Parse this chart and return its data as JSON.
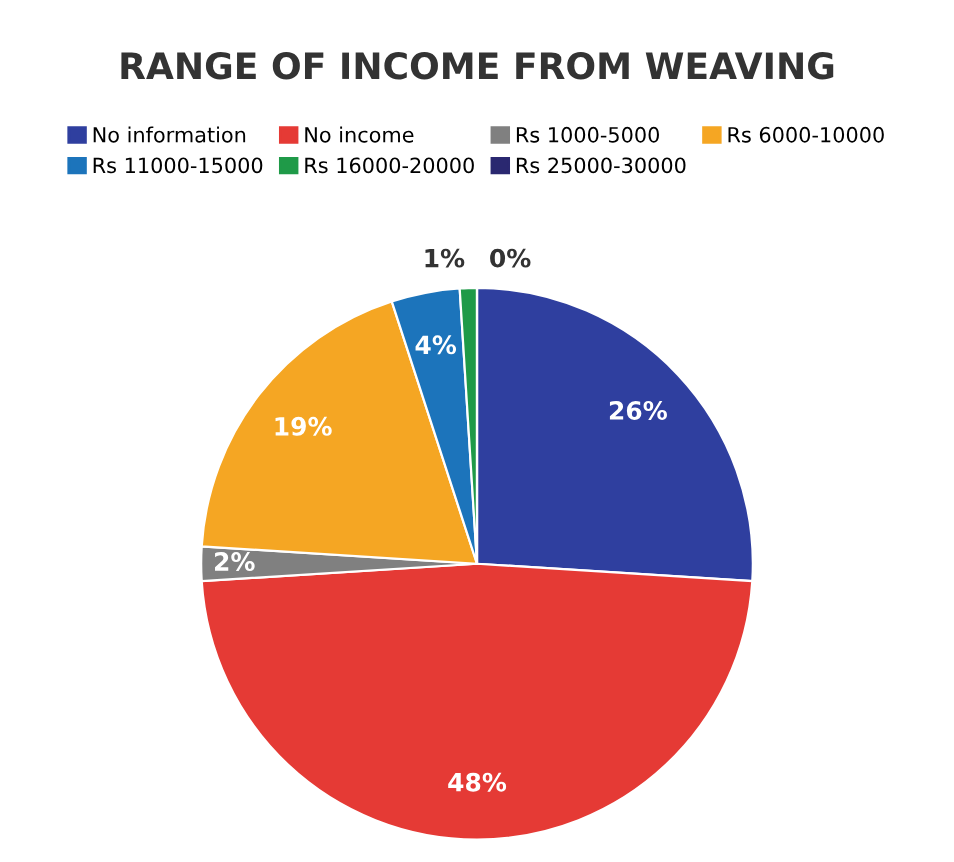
{
  "chart_data": {
    "type": "pie",
    "title": "RANGE OF INCOME FROM WEAVING",
    "categories": [
      "No information",
      "No income",
      "Rs 1000-5000",
      "Rs 6000-10000",
      "Rs 11000-15000",
      "Rs 16000-20000",
      "Rs 25000-30000"
    ],
    "values": [
      26,
      48,
      2,
      19,
      4,
      1,
      0
    ],
    "value_labels": [
      "26%",
      "48%",
      "2%",
      "19%",
      "4%",
      "1%",
      "0%"
    ],
    "colors": [
      "#2f3f9f",
      "#e53a35",
      "#808080",
      "#f5a623",
      "#1c74bb",
      "#1f9a48",
      "#2a2870"
    ],
    "legend": "top"
  }
}
